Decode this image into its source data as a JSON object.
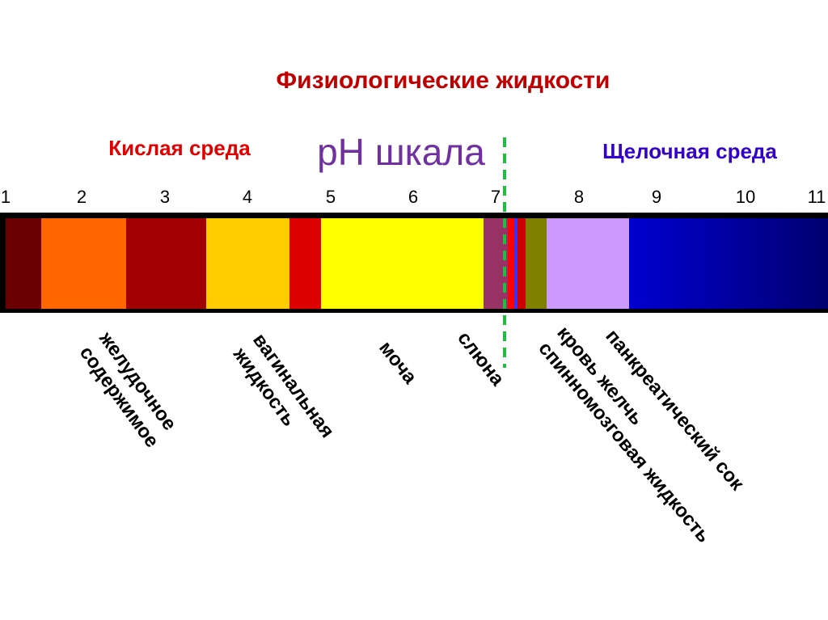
{
  "title": "Физиологические жидкости",
  "scale_title": "pH шкала",
  "acidic_label": "Кислая среда",
  "alkaline_label": "Щелочная среда",
  "scale": [
    1,
    2,
    3,
    4,
    5,
    6,
    7,
    8,
    9,
    10,
    11
  ],
  "fluids": [
    {
      "lines": [
        "желудочное",
        "содержимое"
      ]
    },
    {
      "lines": [
        "вагинальная",
        "жидкость"
      ]
    },
    {
      "lines": [
        "моча"
      ]
    },
    {
      "lines": [
        "слюна"
      ]
    },
    {
      "lines": [
        "кровь желчь",
        "спинномозговая жидкость"
      ]
    },
    {
      "lines": [
        "панкреатический сок"
      ]
    }
  ]
}
